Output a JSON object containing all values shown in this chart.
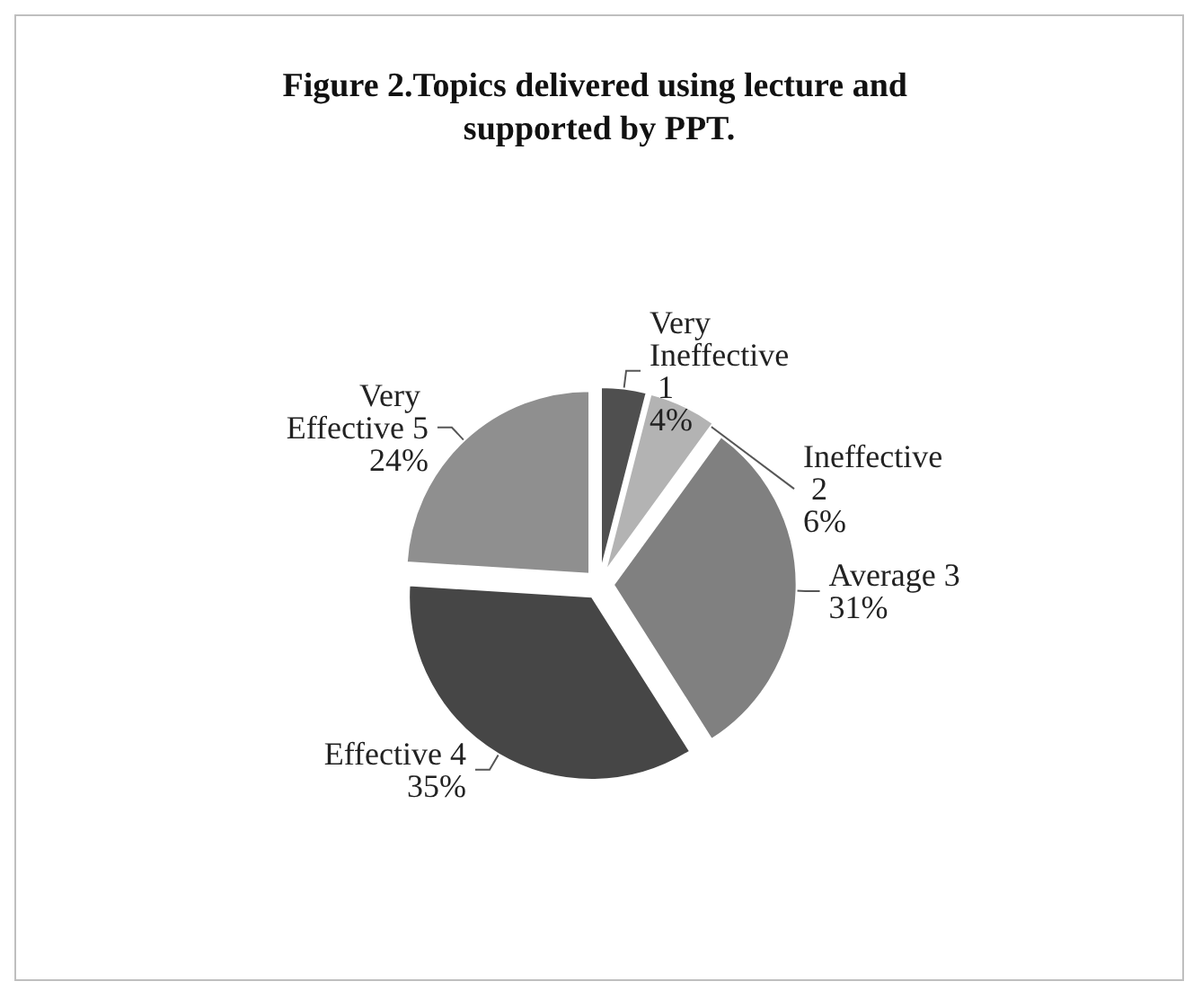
{
  "chart_data": {
    "type": "pie",
    "title": "Figure 2.Topics delivered using lecture and supported by PPT.",
    "categories": [
      "Very Ineffective 1",
      "Ineffective 2",
      "Average 3",
      "Effective 4",
      "Very Effective 5"
    ],
    "values": [
      4,
      6,
      31,
      35,
      24
    ],
    "value_labels": [
      "4%",
      "6%",
      "31%",
      "35%",
      "24%"
    ],
    "colors": [
      "#4f4f4f",
      "#b3b3b3",
      "#808080",
      "#464646",
      "#8f8f8f"
    ],
    "legend": false
  }
}
